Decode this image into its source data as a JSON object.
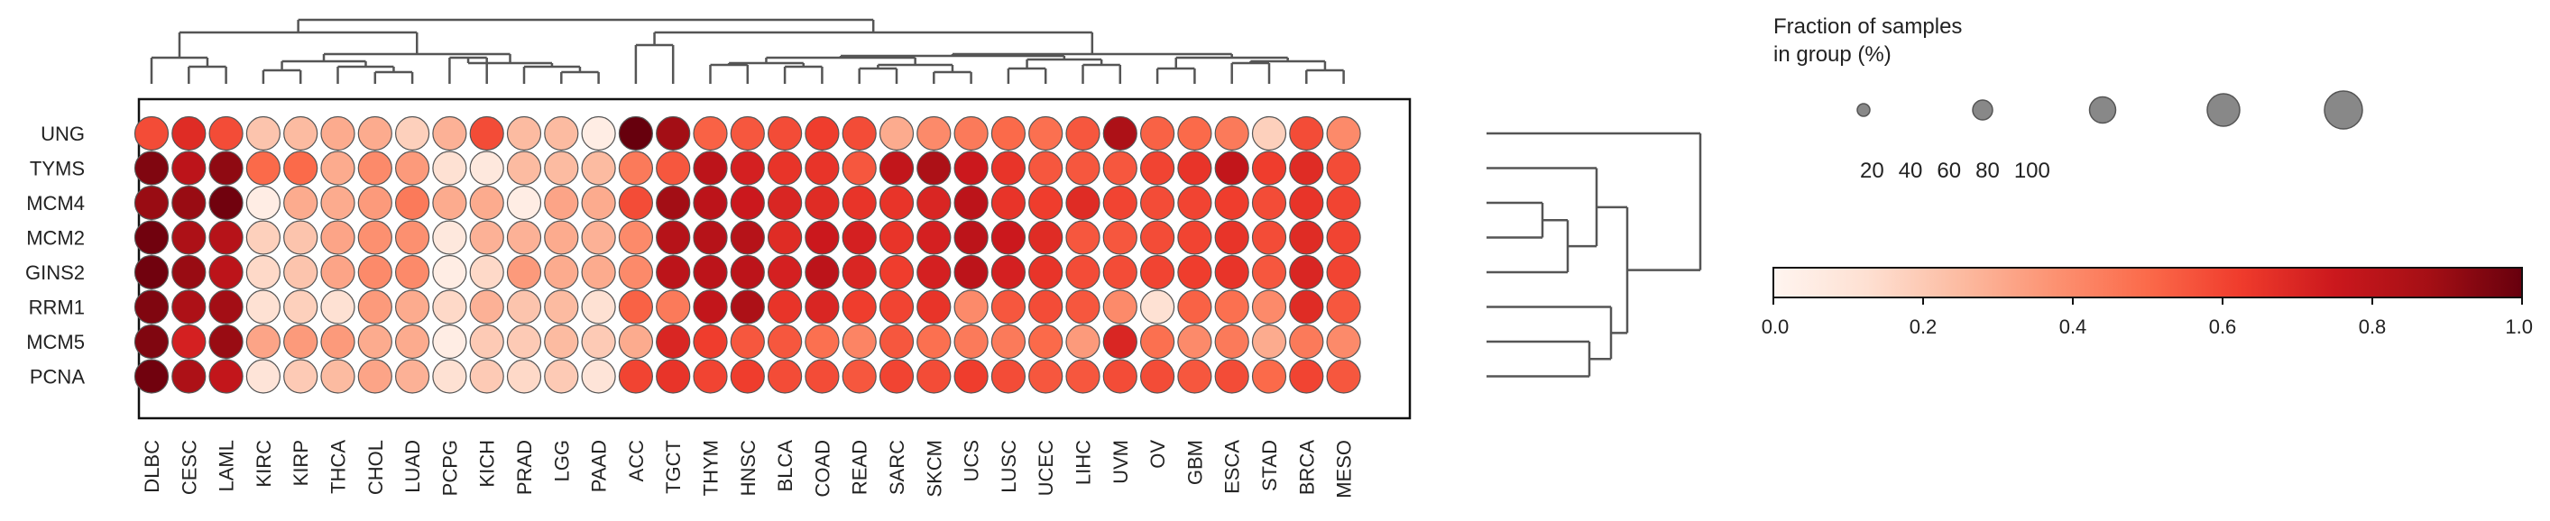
{
  "chart_data": {
    "type": "dotplot",
    "genes": [
      "UNG",
      "TYMS",
      "MCM4",
      "MCM2",
      "GINS2",
      "RRM1",
      "MCM5",
      "PCNA"
    ],
    "cancer_types": [
      "DLBC",
      "CESC",
      "LAML",
      "KIRC",
      "KIRP",
      "THCA",
      "CHOL",
      "LUAD",
      "PCPG",
      "KICH",
      "PRAD",
      "LGG",
      "PAAD",
      "ACC",
      "TGCT",
      "THYM",
      "HNSC",
      "BLCA",
      "COAD",
      "READ",
      "SARC",
      "SKCM",
      "UCS",
      "LUSC",
      "UCEC",
      "LIHC",
      "UVM",
      "OV",
      "GBM",
      "ESCA",
      "STAD",
      "BRCA",
      "MESO"
    ],
    "expression": [
      [
        0.58,
        0.68,
        0.58,
        0.22,
        0.25,
        0.3,
        0.3,
        0.18,
        0.28,
        0.58,
        0.25,
        0.25,
        0.05,
        1.0,
        0.88,
        0.52,
        0.55,
        0.58,
        0.62,
        0.58,
        0.3,
        0.4,
        0.45,
        0.5,
        0.48,
        0.55,
        0.85,
        0.52,
        0.5,
        0.45,
        0.18,
        0.58,
        0.4
      ],
      [
        0.95,
        0.8,
        0.92,
        0.5,
        0.5,
        0.3,
        0.4,
        0.35,
        0.12,
        0.08,
        0.25,
        0.25,
        0.25,
        0.45,
        0.55,
        0.8,
        0.72,
        0.65,
        0.65,
        0.55,
        0.78,
        0.85,
        0.75,
        0.65,
        0.55,
        0.55,
        0.55,
        0.6,
        0.65,
        0.78,
        0.62,
        0.68,
        0.58
      ],
      [
        0.9,
        0.9,
        0.98,
        0.05,
        0.3,
        0.3,
        0.35,
        0.45,
        0.3,
        0.3,
        0.05,
        0.32,
        0.3,
        0.58,
        0.88,
        0.8,
        0.75,
        0.7,
        0.68,
        0.65,
        0.65,
        0.7,
        0.8,
        0.65,
        0.62,
        0.68,
        0.6,
        0.58,
        0.6,
        0.62,
        0.58,
        0.65,
        0.6
      ],
      [
        0.98,
        0.85,
        0.82,
        0.18,
        0.22,
        0.32,
        0.38,
        0.38,
        0.08,
        0.28,
        0.28,
        0.3,
        0.28,
        0.4,
        0.82,
        0.82,
        0.82,
        0.68,
        0.75,
        0.72,
        0.65,
        0.72,
        0.8,
        0.75,
        0.68,
        0.55,
        0.55,
        0.58,
        0.6,
        0.65,
        0.58,
        0.68,
        0.6
      ],
      [
        0.98,
        0.9,
        0.8,
        0.15,
        0.22,
        0.32,
        0.4,
        0.4,
        0.05,
        0.15,
        0.35,
        0.3,
        0.3,
        0.4,
        0.8,
        0.8,
        0.8,
        0.72,
        0.8,
        0.7,
        0.62,
        0.72,
        0.8,
        0.72,
        0.65,
        0.58,
        0.58,
        0.6,
        0.62,
        0.65,
        0.55,
        0.7,
        0.6
      ],
      [
        0.95,
        0.85,
        0.88,
        0.12,
        0.18,
        0.12,
        0.35,
        0.3,
        0.15,
        0.28,
        0.22,
        0.25,
        0.12,
        0.52,
        0.45,
        0.78,
        0.85,
        0.65,
        0.7,
        0.62,
        0.6,
        0.65,
        0.4,
        0.55,
        0.58,
        0.55,
        0.4,
        0.12,
        0.52,
        0.48,
        0.4,
        0.68,
        0.55
      ],
      [
        0.95,
        0.72,
        0.9,
        0.32,
        0.35,
        0.35,
        0.3,
        0.3,
        0.05,
        0.2,
        0.2,
        0.25,
        0.2,
        0.3,
        0.7,
        0.62,
        0.55,
        0.55,
        0.48,
        0.42,
        0.55,
        0.48,
        0.45,
        0.45,
        0.5,
        0.35,
        0.7,
        0.48,
        0.4,
        0.45,
        0.3,
        0.45,
        0.4
      ],
      [
        0.98,
        0.85,
        0.78,
        0.1,
        0.2,
        0.25,
        0.32,
        0.28,
        0.12,
        0.2,
        0.15,
        0.2,
        0.1,
        0.6,
        0.65,
        0.6,
        0.62,
        0.58,
        0.58,
        0.55,
        0.6,
        0.58,
        0.62,
        0.58,
        0.55,
        0.55,
        0.58,
        0.58,
        0.55,
        0.58,
        0.5,
        0.6,
        0.55
      ]
    ],
    "colorbar": {
      "label": "",
      "range": [
        0.0,
        1.0
      ],
      "ticks": [
        "0.0",
        "0.2",
        "0.4",
        "0.6",
        "0.8",
        "1.0"
      ],
      "cmap": "Reds"
    },
    "size_legend": {
      "title_line1": "Fraction of samples",
      "title_line2": "in group (%)",
      "values": [
        "20",
        "40",
        "60",
        "80",
        "100"
      ]
    },
    "colors": {
      "dot_edge": "#555555",
      "dendrogram": "#555555",
      "frame": "#111111"
    }
  }
}
